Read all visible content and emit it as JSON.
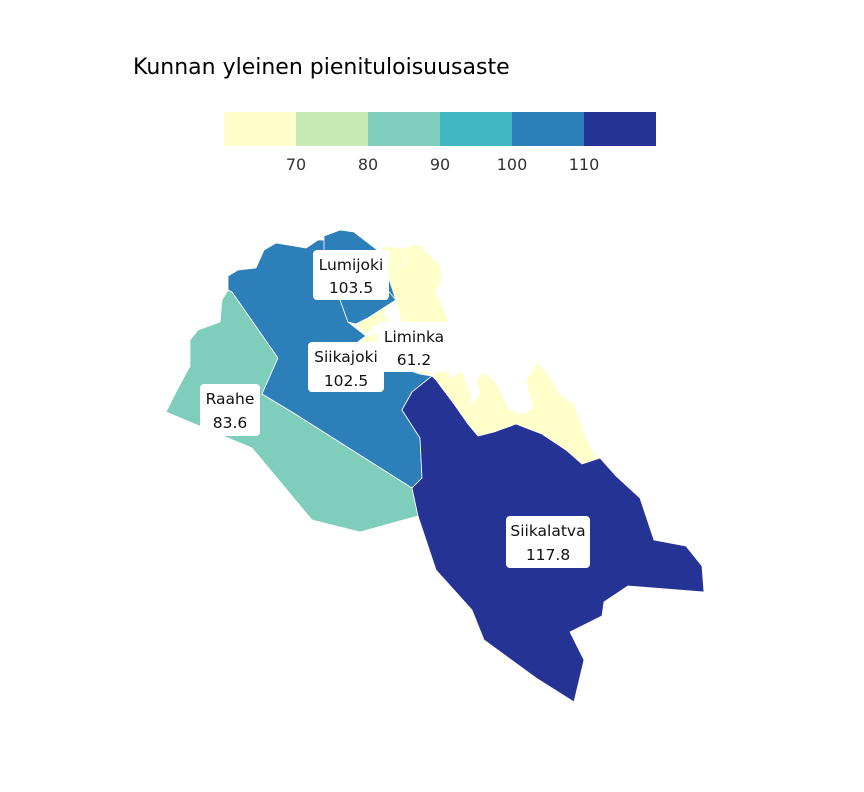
{
  "title": "Kunnan yleinen pienituloisuusaste",
  "legend": {
    "colors": [
      "#ffffcc",
      "#c7e9b4",
      "#7fcdbb",
      "#41b6c4",
      "#2c7fb8",
      "#253494"
    ],
    "ticks": [
      "70",
      "80",
      "90",
      "100",
      "110"
    ]
  },
  "regions": [
    {
      "name": "Lumijoki",
      "value": "103.5",
      "color": "#2c7fb8"
    },
    {
      "name": "Liminka",
      "value": "61.2",
      "color": "#ffffcc"
    },
    {
      "name": "Siikajoki",
      "value": "102.5",
      "color": "#2c7fb8"
    },
    {
      "name": "Raahe",
      "value": "83.6",
      "color": "#7fcdbb"
    },
    {
      "name": "Siikalatva",
      "value": "117.8",
      "color": "#253494"
    }
  ]
}
